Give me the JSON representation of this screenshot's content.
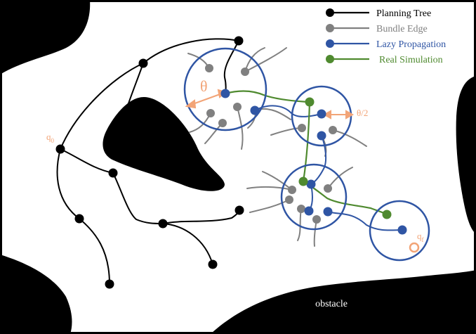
{
  "legend": {
    "items": [
      {
        "label": "Planning Tree",
        "color": "#000000"
      },
      {
        "label": "Bundle Edge",
        "color": "#808080"
      },
      {
        "label": "Lazy Propagation",
        "color": "#2f55a4"
      },
      {
        "label": "Real Simulation",
        "color": "#4f8a2f"
      }
    ]
  },
  "annotations": {
    "theta": "θ",
    "half_theta": "θ/2",
    "q0_base": "q",
    "q0_sub": "0",
    "qf_base": "q",
    "qf_sub": "f",
    "obstacle": "obstacle"
  },
  "colors": {
    "tree": "#000000",
    "bundle": "#808080",
    "lazy": "#2f55a4",
    "real": "#4f8a2f",
    "annotation": "#f2a477",
    "obstacle": "#000000",
    "background": "#ffffff"
  }
}
